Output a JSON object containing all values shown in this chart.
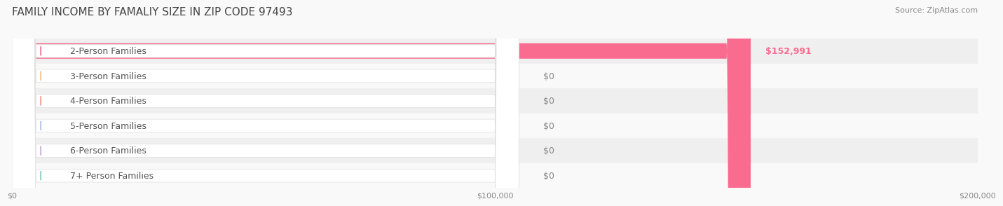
{
  "title": "FAMILY INCOME BY FAMALIY SIZE IN ZIP CODE 97493",
  "source": "Source: ZipAtlas.com",
  "categories": [
    "2-Person Families",
    "3-Person Families",
    "4-Person Families",
    "5-Person Families",
    "6-Person Families",
    "7+ Person Families"
  ],
  "values": [
    152991,
    0,
    0,
    0,
    0,
    0
  ],
  "bar_colors": [
    "#F96C8F",
    "#F7BC82",
    "#F5958A",
    "#A9BDE8",
    "#C9A8D8",
    "#7DCEC4"
  ],
  "label_colors": [
    "#F96C8F",
    "#F7BC82",
    "#F5958A",
    "#A9BDE8",
    "#C9A8D8",
    "#7DCEC4"
  ],
  "value_labels": [
    "$152,991",
    "$0",
    "$0",
    "$0",
    "$0",
    "$0"
  ],
  "xlim": [
    0,
    200000
  ],
  "xticks": [
    0,
    100000,
    200000
  ],
  "xtick_labels": [
    "$0",
    "$100,000",
    "$200,000"
  ],
  "background_color": "#f9f9f9",
  "bar_height": 0.62,
  "title_fontsize": 11,
  "source_fontsize": 8,
  "label_fontsize": 9,
  "value_fontsize": 9
}
